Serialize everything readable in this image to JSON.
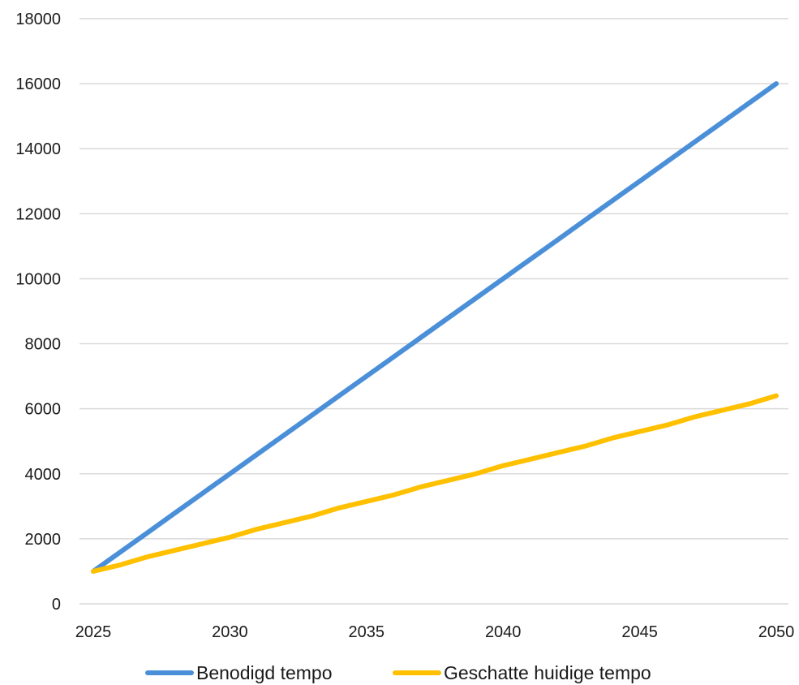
{
  "chart_data": {
    "type": "line",
    "title": "",
    "xlabel": "",
    "ylabel": "",
    "x": [
      2025,
      2026,
      2027,
      2028,
      2029,
      2030,
      2031,
      2032,
      2033,
      2034,
      2035,
      2036,
      2037,
      2038,
      2039,
      2040,
      2041,
      2042,
      2043,
      2044,
      2045,
      2046,
      2047,
      2048,
      2049,
      2050
    ],
    "xticks": [
      "2025",
      "2030",
      "2035",
      "2040",
      "2045",
      "2050"
    ],
    "xlim": [
      2025,
      2050
    ],
    "yticks": [
      "0",
      "2000",
      "4000",
      "6000",
      "8000",
      "10000",
      "12000",
      "14000",
      "16000",
      "18000"
    ],
    "ylim": [
      0,
      18000
    ],
    "grid": true,
    "legend_position": "bottom",
    "series": [
      {
        "name": "Benodigd tempo",
        "color": "#4a8fd8",
        "values": [
          1000,
          1600,
          2200,
          2800,
          3400,
          4000,
          4600,
          5200,
          5800,
          6400,
          7000,
          7600,
          8200,
          8800,
          9400,
          10000,
          10600,
          11200,
          11800,
          12400,
          13000,
          13600,
          14200,
          14800,
          15400,
          16000
        ]
      },
      {
        "name": "Geschatte huidige tempo",
        "color": "#ffc000",
        "values": [
          1000,
          1200,
          1450,
          1650,
          1850,
          2050,
          2300,
          2500,
          2700,
          2950,
          3150,
          3350,
          3600,
          3800,
          4000,
          4250,
          4450,
          4650,
          4850,
          5100,
          5300,
          5500,
          5750,
          5950,
          6150,
          6400
        ]
      }
    ]
  }
}
